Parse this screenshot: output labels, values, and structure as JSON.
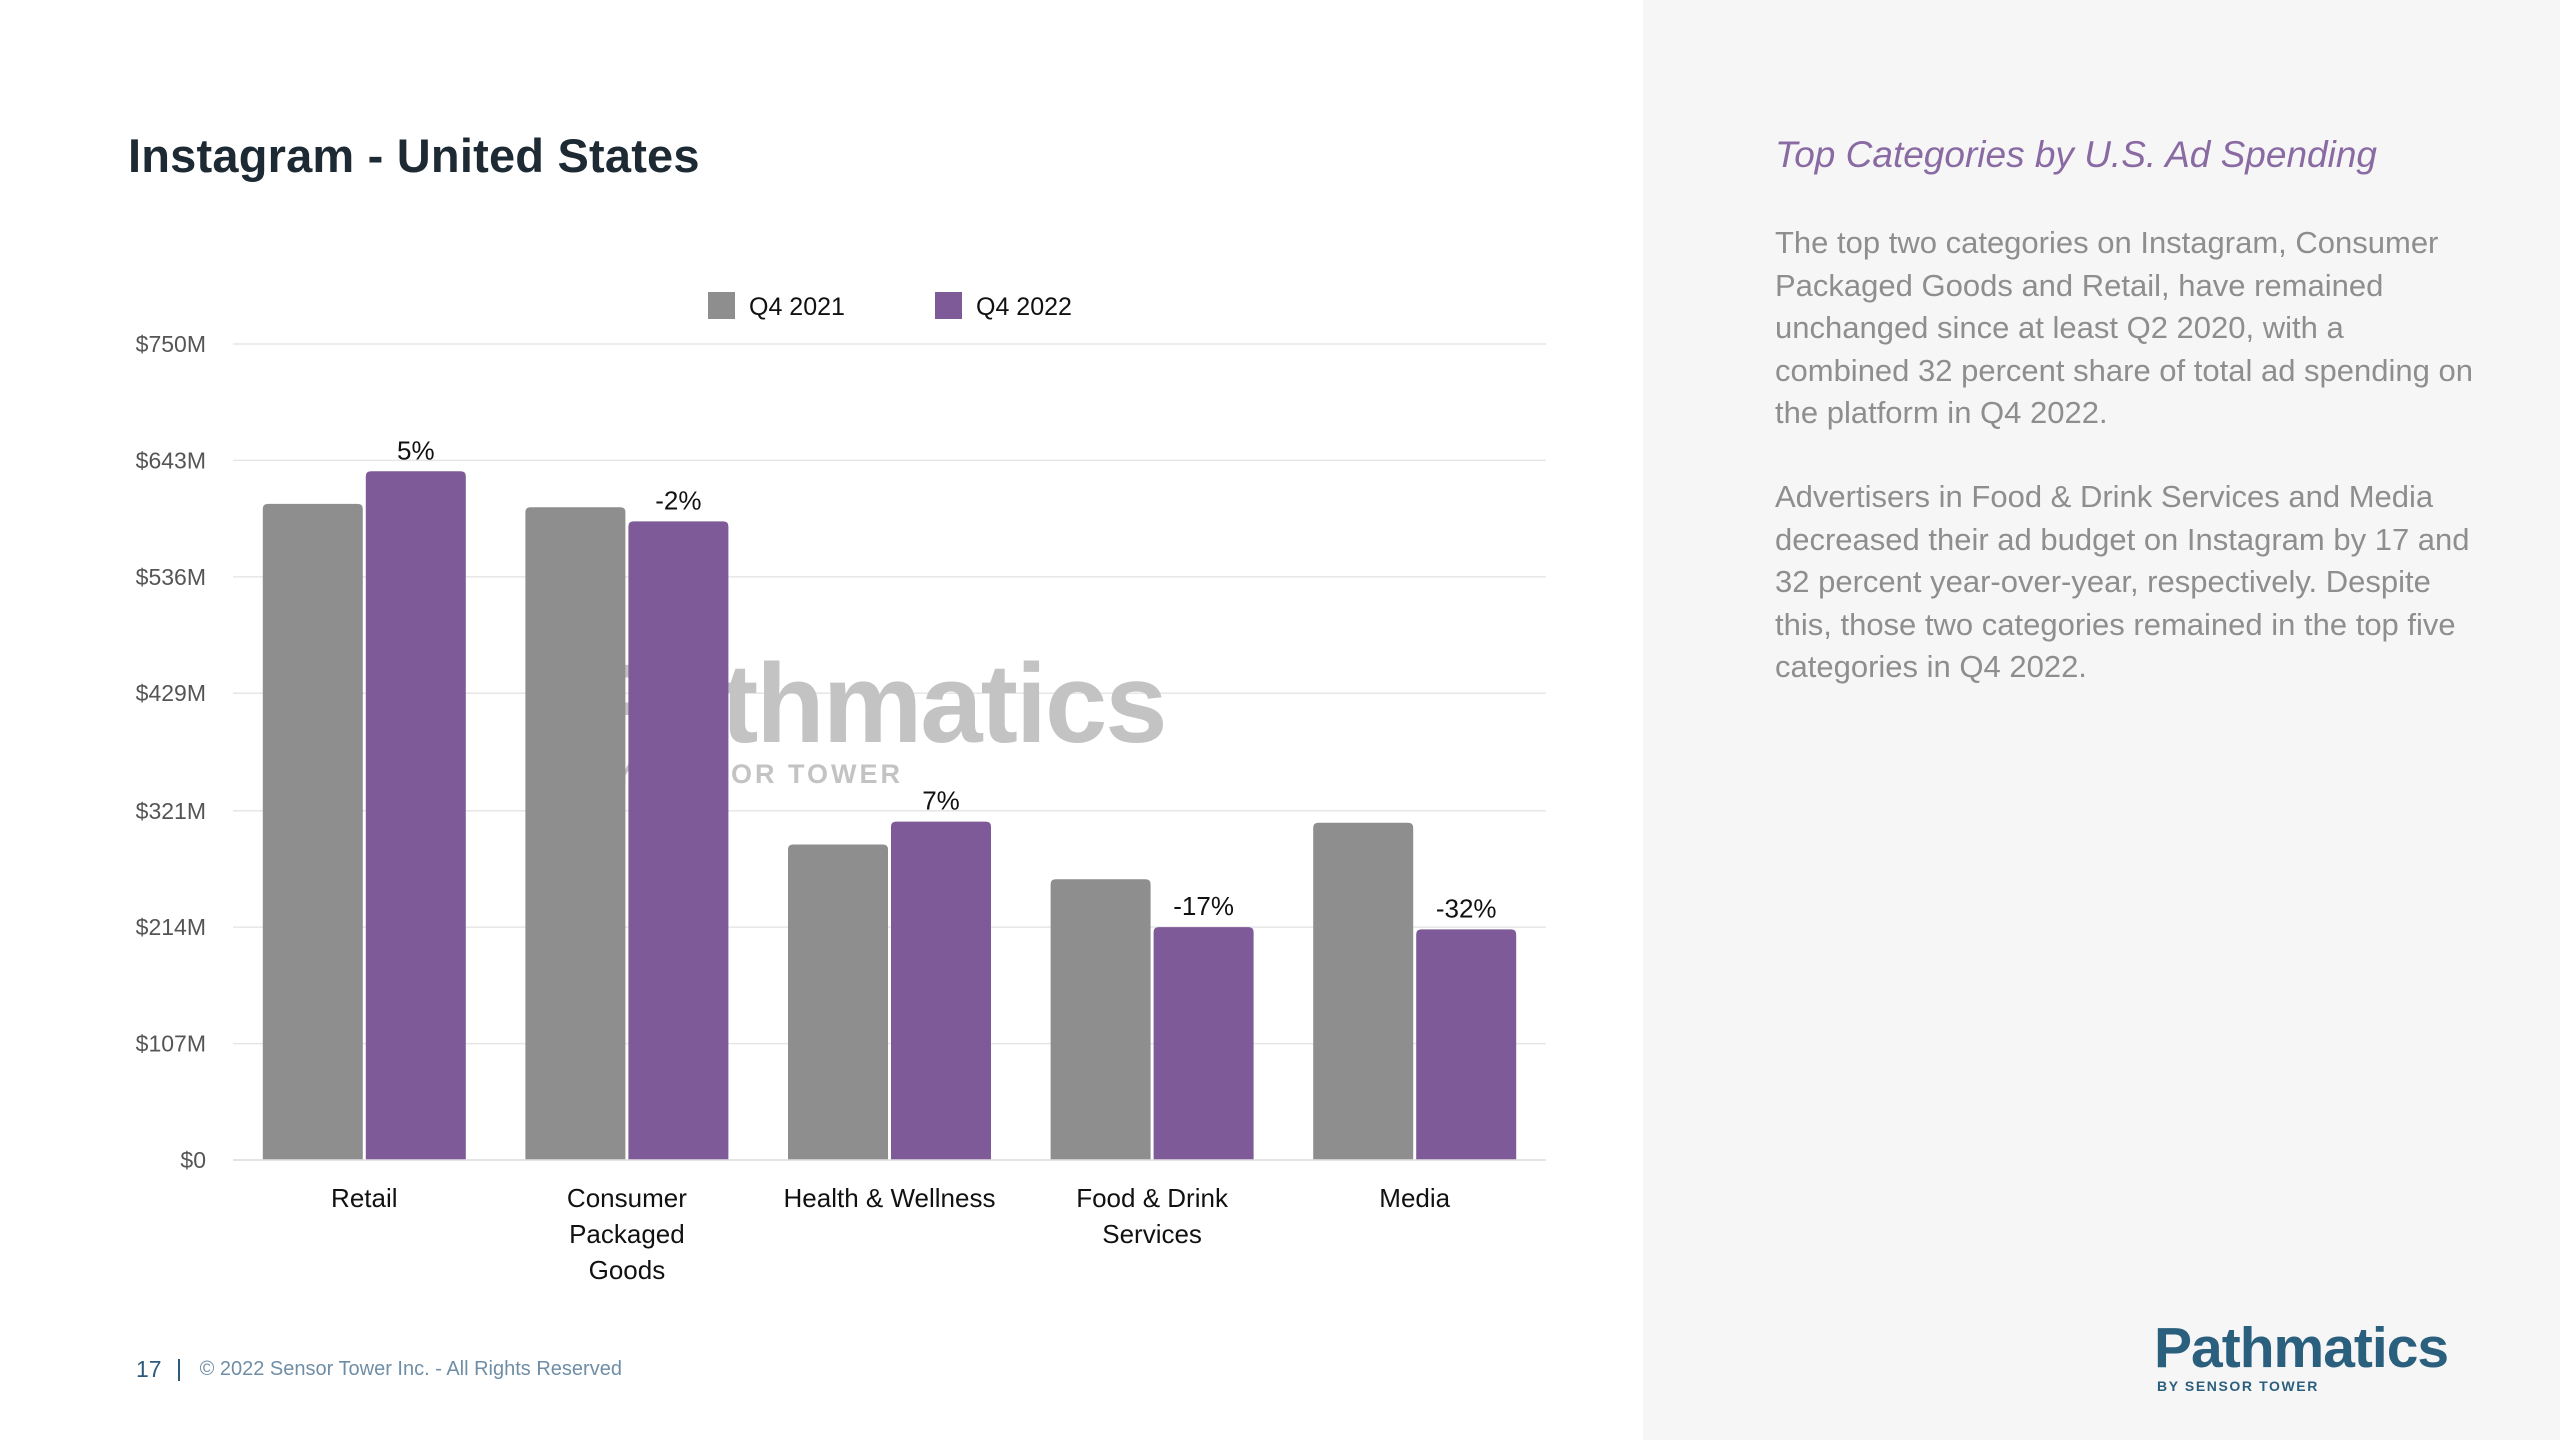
{
  "page": {
    "title": "Instagram - United States",
    "page_number": "17",
    "copyright": "© 2022 Sensor Tower Inc. - All Rights Reserved"
  },
  "watermark": {
    "name": "Pathmatics",
    "sub": "BY SENSOR TOWER"
  },
  "sidebar": {
    "heading": "Top Categories by U.S. Ad Spending",
    "paragraphs": [
      "The top two categories on Instagram, Consumer Packaged Goods and Retail, have remained unchanged since at least Q2 2020, with a combined 32 percent share of total ad spending on the platform in Q4 2022.",
      "Advertisers in Food & Drink Services and Media decreased their ad budget on Instagram by 17 and 32 percent year-over-year, respectively. Despite this, those two categories remained in the top five categories in Q4 2022."
    ]
  },
  "brand": {
    "name": "Pathmatics",
    "sub": "BY SENSOR TOWER",
    "color": "#2a5f7e"
  },
  "chart_data": {
    "type": "bar",
    "categories": [
      [
        "Retail"
      ],
      [
        "Consumer",
        "Packaged",
        "Goods"
      ],
      [
        "Health & Wellness"
      ],
      [
        "Food & Drink",
        "Services"
      ],
      [
        "Media"
      ]
    ],
    "series": [
      {
        "name": "Q4 2021",
        "color": "#8e8e8e",
        "values": [
          603,
          600,
          290,
          258,
          310
        ]
      },
      {
        "name": "Q4 2022",
        "color": "#7f5a99",
        "values": [
          633,
          587,
          311,
          214,
          212
        ]
      }
    ],
    "change_labels": [
      "5%",
      "-2%",
      "7%",
      "-17%",
      "-32%"
    ],
    "y_ticks": [
      "$0",
      "$107M",
      "$214M",
      "$321M",
      "$429M",
      "$536M",
      "$643M",
      "$750M"
    ],
    "y_tick_values": [
      0,
      107,
      214,
      321,
      429,
      536,
      643,
      750
    ],
    "ylim": [
      0,
      750
    ],
    "grid": true,
    "legend_position": "top"
  }
}
